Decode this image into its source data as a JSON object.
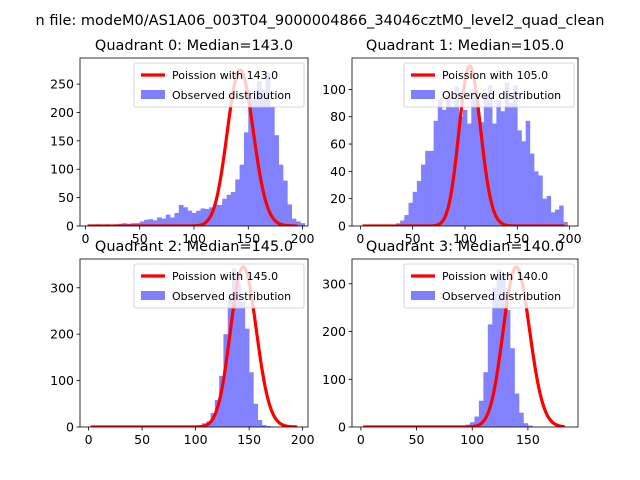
{
  "figure": {
    "suptitle": "n file: modeM0/AS1A06_003T04_9000004866_34046cztM0_level2_quad_clean"
  },
  "colors": {
    "histogram": "#8080ff",
    "poisson": "#ff0000",
    "axes": "#000000"
  },
  "chart_data": [
    {
      "type": "bar",
      "title": "Quadrant 0: Median=143.0",
      "xlim": [
        -5,
        205
      ],
      "ylim": [
        0,
        296
      ],
      "xticks": [
        0,
        50,
        100,
        150,
        200
      ],
      "yticks": [
        0,
        50,
        100,
        150,
        200,
        250
      ],
      "legend_position": "top-right",
      "legend": {
        "line": "Poission with 143.0",
        "bar": "Observed distribution"
      },
      "poisson_mean": 143.0,
      "poisson_scale": 275,
      "poisson_xrange": [
        2,
        195
      ],
      "bins": {
        "start": 2,
        "width": 4
      },
      "values": [
        2,
        2,
        3,
        2,
        3,
        2,
        3,
        4,
        5,
        4,
        5,
        5,
        8,
        11,
        12,
        10,
        15,
        13,
        20,
        15,
        23,
        37,
        33,
        27,
        23,
        27,
        31,
        30,
        33,
        38,
        37,
        48,
        55,
        60,
        82,
        108,
        165,
        225,
        238,
        255,
        240,
        270,
        210,
        160,
        108,
        80,
        38,
        13,
        8,
        5
      ]
    },
    {
      "type": "bar",
      "title": "Quadrant 1: Median=105.0",
      "xlim": [
        -8,
        208
      ],
      "ylim": [
        0,
        123
      ],
      "xticks": [
        0,
        50,
        100,
        150,
        200
      ],
      "yticks": [
        0,
        20,
        40,
        60,
        80,
        100
      ],
      "legend_position": "top-right",
      "legend": {
        "line": "Poission with 105.0",
        "bar": "Observed distribution"
      },
      "poisson_mean": 105.0,
      "poisson_scale": 117,
      "poisson_xrange": [
        2,
        195
      ],
      "bins": {
        "start": 2,
        "width": 4
      },
      "values": [
        0,
        0,
        0,
        0,
        0,
        0,
        0,
        0,
        2,
        4,
        8,
        17,
        25,
        33,
        45,
        55,
        55,
        77,
        92,
        85,
        95,
        87,
        102,
        80,
        85,
        75,
        100,
        90,
        76,
        95,
        103,
        75,
        92,
        84,
        105,
        90,
        103,
        70,
        62,
        77,
        53,
        40,
        37,
        20,
        22,
        10,
        12,
        15,
        3,
        0
      ]
    },
    {
      "type": "bar",
      "title": "Quadrant 2: Median=145.0",
      "xlim": [
        -8,
        205
      ],
      "ylim": [
        0,
        362
      ],
      "xticks": [
        0,
        50,
        100,
        150,
        200
      ],
      "yticks": [
        0,
        100,
        200,
        300
      ],
      "legend_position": "top-right",
      "legend": {
        "line": "Poission with 145.0",
        "bar": "Observed distribution"
      },
      "poisson_mean": 145.0,
      "poisson_scale": 345,
      "poisson_xrange": [
        2,
        195
      ],
      "bins": {
        "start": 2,
        "width": 4
      },
      "values": [
        0,
        0,
        0,
        0,
        0,
        0,
        0,
        0,
        0,
        0,
        0,
        0,
        0,
        0,
        0,
        0,
        0,
        0,
        0,
        0,
        2,
        0,
        3,
        0,
        2,
        3,
        8,
        12,
        30,
        58,
        110,
        200,
        280,
        342,
        310,
        270,
        212,
        118,
        50,
        15,
        4,
        2,
        0,
        0,
        0,
        0,
        0,
        0,
        0,
        0
      ]
    },
    {
      "type": "bar",
      "title": "Quadrant 3: Median=140.0",
      "xlim": [
        -8,
        195
      ],
      "ylim": [
        0,
        352
      ],
      "xticks": [
        0,
        50,
        100,
        150
      ],
      "yticks": [
        0,
        100,
        200,
        300
      ],
      "legend_position": "top-right",
      "legend": {
        "line": "Poission with 140.0",
        "bar": "Observed distribution"
      },
      "poisson_mean": 140.0,
      "poisson_scale": 335,
      "poisson_xrange": [
        2,
        183
      ],
      "bins": {
        "start": 2,
        "width": 4
      },
      "values": [
        0,
        0,
        0,
        0,
        0,
        0,
        0,
        0,
        0,
        0,
        0,
        0,
        0,
        0,
        0,
        0,
        0,
        0,
        0,
        0,
        0,
        2,
        3,
        5,
        10,
        22,
        55,
        115,
        215,
        292,
        330,
        320,
        245,
        165,
        70,
        30,
        8,
        3,
        0,
        0,
        0,
        0,
        0,
        0,
        0,
        0,
        0,
        0,
        0,
        0
      ]
    }
  ]
}
